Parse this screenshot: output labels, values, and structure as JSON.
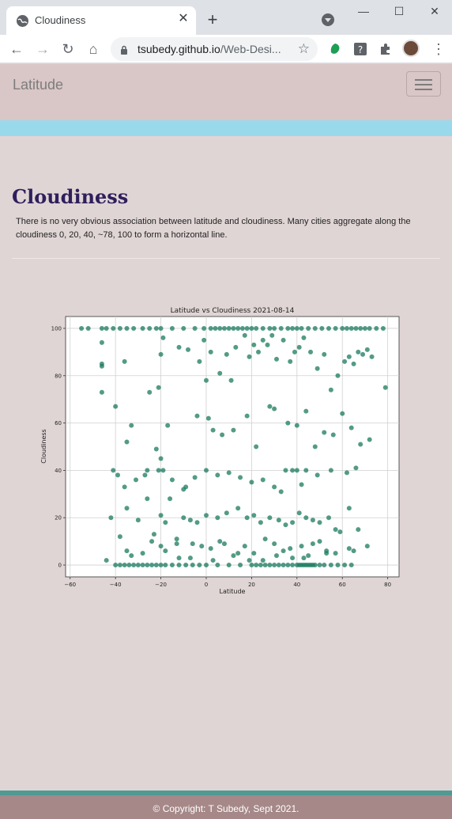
{
  "browser": {
    "tab_title": "Cloudiness",
    "url_host": "tsubedy.github.io",
    "url_path": "/Web-Desi..."
  },
  "navbar": {
    "brand": "Latitude"
  },
  "main": {
    "heading": "Cloudiness",
    "description": "There is no very obvious association between latitude and cloudiness. Many cities aggregate along the cloudiness 0, 20, 40, ~78, 100 to form a horizontal line."
  },
  "footer": {
    "text": "© Copyright: T Subedy, Sept 2021."
  },
  "colors": {
    "point": "#1a7a5e",
    "brand_heading": "#2e1f5c",
    "accent_bar": "#9ad9eb",
    "footer": "#a68888"
  },
  "chart_data": {
    "type": "scatter",
    "title": "Latitude vs Cloudiness 2021-08-14",
    "xlabel": "Latitude",
    "ylabel": "Cloudiness",
    "xlim": [
      -62,
      85
    ],
    "ylim": [
      -5,
      105
    ],
    "xticks": [
      -60,
      -40,
      -20,
      0,
      20,
      40,
      60,
      80
    ],
    "yticks": [
      0,
      20,
      40,
      60,
      80,
      100
    ],
    "grid": true,
    "series": [
      {
        "x": [
          -55,
          -52,
          -46,
          -44,
          -41,
          -38,
          -35,
          -32,
          -28,
          -25,
          -22,
          -20,
          -15,
          -10,
          -5,
          -1,
          2,
          4,
          6,
          8,
          10,
          12,
          14,
          16,
          18,
          20,
          22,
          25,
          28,
          30,
          33,
          36,
          38,
          40,
          42,
          45,
          48,
          51,
          54,
          57,
          60,
          62,
          64,
          66,
          68,
          70,
          72,
          75,
          78,
          -46,
          -46,
          -46,
          -46,
          -40,
          -36,
          -35,
          -25,
          -21,
          -20,
          -19,
          -12,
          -8,
          -3,
          -1,
          0,
          2,
          6,
          9,
          11,
          13,
          17,
          19,
          21,
          23,
          25,
          27,
          29,
          31,
          34,
          37,
          39,
          41,
          43,
          46,
          49,
          52,
          55,
          58,
          61,
          63,
          65,
          67,
          69,
          71,
          73,
          79,
          -39,
          -33,
          -27,
          -22,
          -17,
          -9,
          -4,
          1,
          3,
          7,
          12,
          18,
          22,
          28,
          30,
          36,
          40,
          44,
          48,
          52,
          56,
          60,
          64,
          68,
          72,
          -41,
          -36,
          -31,
          -26,
          -21,
          -20,
          -19,
          -15,
          -10,
          -5,
          0,
          5,
          10,
          15,
          20,
          25,
          30,
          33,
          35,
          38,
          40,
          42,
          44,
          49,
          55,
          62,
          66,
          -42,
          -38,
          -35,
          -30,
          -26,
          -23,
          -20,
          -18,
          -16,
          -13,
          -10,
          -7,
          -4,
          0,
          5,
          9,
          14,
          18,
          21,
          24,
          28,
          32,
          35,
          38,
          41,
          44,
          47,
          50,
          54,
          57,
          63,
          67,
          -40,
          -38,
          -36,
          -34,
          -32,
          -30,
          -28,
          -26,
          -24,
          -22,
          -20,
          -18,
          -15,
          -12,
          -9,
          -6,
          -3,
          0,
          5,
          10,
          15,
          20,
          22,
          24,
          26,
          28,
          30,
          32,
          34,
          36,
          38,
          40,
          41,
          42,
          43,
          44,
          45,
          46,
          47,
          48,
          50,
          52,
          55,
          58,
          61,
          64,
          -35,
          -28,
          -20,
          -12,
          -6,
          2,
          6,
          12,
          17,
          21,
          25,
          30,
          34,
          38,
          42,
          45,
          50,
          53,
          57,
          63,
          -44,
          -33,
          -24,
          -18,
          -13,
          -7,
          -2,
          3,
          8,
          14,
          19,
          26,
          31,
          37,
          43,
          47,
          53,
          59,
          65,
          71
        ],
        "y": [
          100,
          100,
          100,
          100,
          100,
          100,
          100,
          100,
          100,
          100,
          100,
          100,
          100,
          100,
          100,
          100,
          100,
          100,
          100,
          100,
          100,
          100,
          100,
          100,
          100,
          100,
          100,
          100,
          100,
          100,
          100,
          100,
          100,
          100,
          100,
          100,
          100,
          100,
          100,
          100,
          100,
          100,
          100,
          100,
          100,
          100,
          100,
          100,
          100,
          94,
          85,
          84,
          73,
          67,
          86,
          52,
          73,
          75,
          89,
          96,
          92,
          91,
          86,
          95,
          78,
          90,
          81,
          89,
          78,
          92,
          97,
          88,
          93,
          90,
          95,
          93,
          97,
          87,
          95,
          86,
          90,
          92,
          96,
          90,
          83,
          89,
          74,
          80,
          86,
          88,
          85,
          90,
          89,
          91,
          88,
          75,
          38,
          59,
          38,
          49,
          59,
          33,
          63,
          62,
          57,
          55,
          57,
          63,
          50,
          67,
          66,
          60,
          59,
          65,
          50,
          56,
          55,
          64,
          58,
          51,
          53,
          40,
          33,
          36,
          40,
          40,
          45,
          40,
          36,
          32,
          37,
          40,
          38,
          39,
          37,
          35,
          36,
          33,
          31,
          40,
          40,
          40,
          34,
          40,
          38,
          40,
          39,
          41,
          20,
          12,
          24,
          19,
          28,
          13,
          21,
          18,
          28,
          11,
          20,
          19,
          18,
          21,
          20,
          22,
          24,
          20,
          21,
          18,
          20,
          19,
          17,
          18,
          22,
          20,
          19,
          18,
          20,
          15,
          24,
          15,
          0,
          0,
          0,
          0,
          0,
          0,
          0,
          0,
          0,
          0,
          0,
          0,
          0,
          0,
          0,
          0,
          0,
          0,
          0,
          0,
          0,
          0,
          0,
          0,
          0,
          0,
          0,
          0,
          0,
          0,
          0,
          0,
          0,
          0,
          0,
          0,
          0,
          0,
          0,
          0,
          0,
          0,
          0,
          0,
          0,
          0,
          6,
          5,
          8,
          3,
          9,
          7,
          10,
          4,
          8,
          5,
          2,
          9,
          6,
          3,
          8,
          4,
          10,
          6,
          5,
          7,
          2,
          4,
          10,
          6,
          9,
          3,
          8,
          2,
          9,
          5,
          2,
          11,
          4,
          7,
          3,
          9,
          5,
          14,
          6,
          8
        ]
      }
    ]
  }
}
